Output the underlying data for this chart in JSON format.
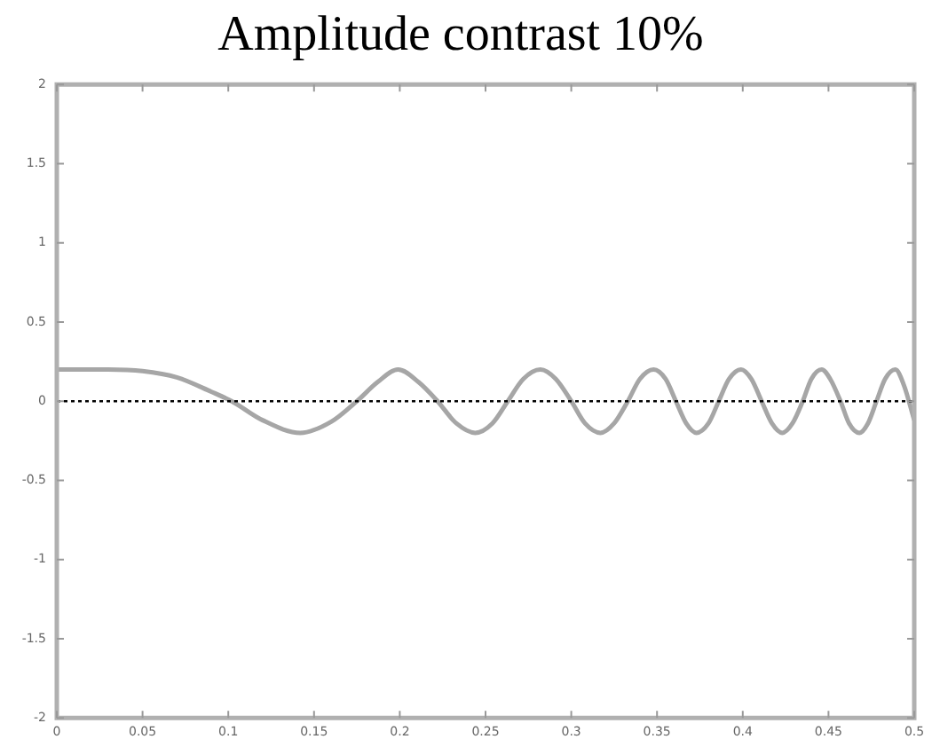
{
  "chart_data": {
    "type": "line",
    "title": "Amplitude contrast 10%",
    "series": [
      {
        "color": "#a6a6a6",
        "x": [
          0,
          0.03,
          0.05,
          0.07,
          0.09,
          0.102,
          0.12,
          0.142,
          0.16,
          0.175,
          0.187,
          0.199,
          0.211,
          0.222,
          0.233,
          0.244,
          0.254,
          0.263,
          0.272,
          0.282,
          0.291,
          0.3,
          0.308,
          0.317,
          0.325,
          0.333,
          0.34,
          0.348,
          0.355,
          0.361,
          0.367,
          0.373,
          0.38,
          0.386,
          0.392,
          0.399,
          0.405,
          0.411,
          0.417,
          0.423,
          0.429,
          0.435,
          0.44,
          0.446,
          0.451,
          0.457,
          0.462,
          0.468,
          0.473,
          0.478,
          0.483,
          0.489,
          0.494,
          0.5
        ],
        "values": [
          0.2,
          0.2,
          0.19,
          0.15,
          0.06,
          0,
          -0.12,
          -0.2,
          -0.13,
          0,
          0.12,
          0.2,
          0.12,
          0,
          -0.14,
          -0.2,
          -0.14,
          0,
          0.14,
          0.2,
          0.14,
          0,
          -0.14,
          -0.2,
          -0.14,
          0,
          0.14,
          0.2,
          0.14,
          0,
          -0.14,
          -0.2,
          -0.14,
          0,
          0.14,
          0.2,
          0.14,
          0,
          -0.14,
          -0.2,
          -0.14,
          0,
          0.14,
          0.2,
          0.14,
          0,
          -0.14,
          -0.2,
          -0.14,
          0,
          0.14,
          0.2,
          0.1,
          -0.12
        ]
      }
    ],
    "xlim": [
      0,
      0.5
    ],
    "xticks": [
      0,
      0.05,
      0.1,
      0.15,
      0.2,
      0.25,
      0.3,
      0.35,
      0.4,
      0.45,
      0.5
    ],
    "ylim": [
      -2,
      2
    ],
    "yticks": [
      -2,
      -1.5,
      -1,
      -0.5,
      0,
      0.5,
      1,
      1.5,
      2
    ],
    "ref_lines": [
      {
        "axis": "y",
        "value": 0,
        "color": "#000000",
        "line_style": "dotted"
      }
    ],
    "marker": "none",
    "line_style": "solid",
    "grid": false,
    "legend": false
  }
}
